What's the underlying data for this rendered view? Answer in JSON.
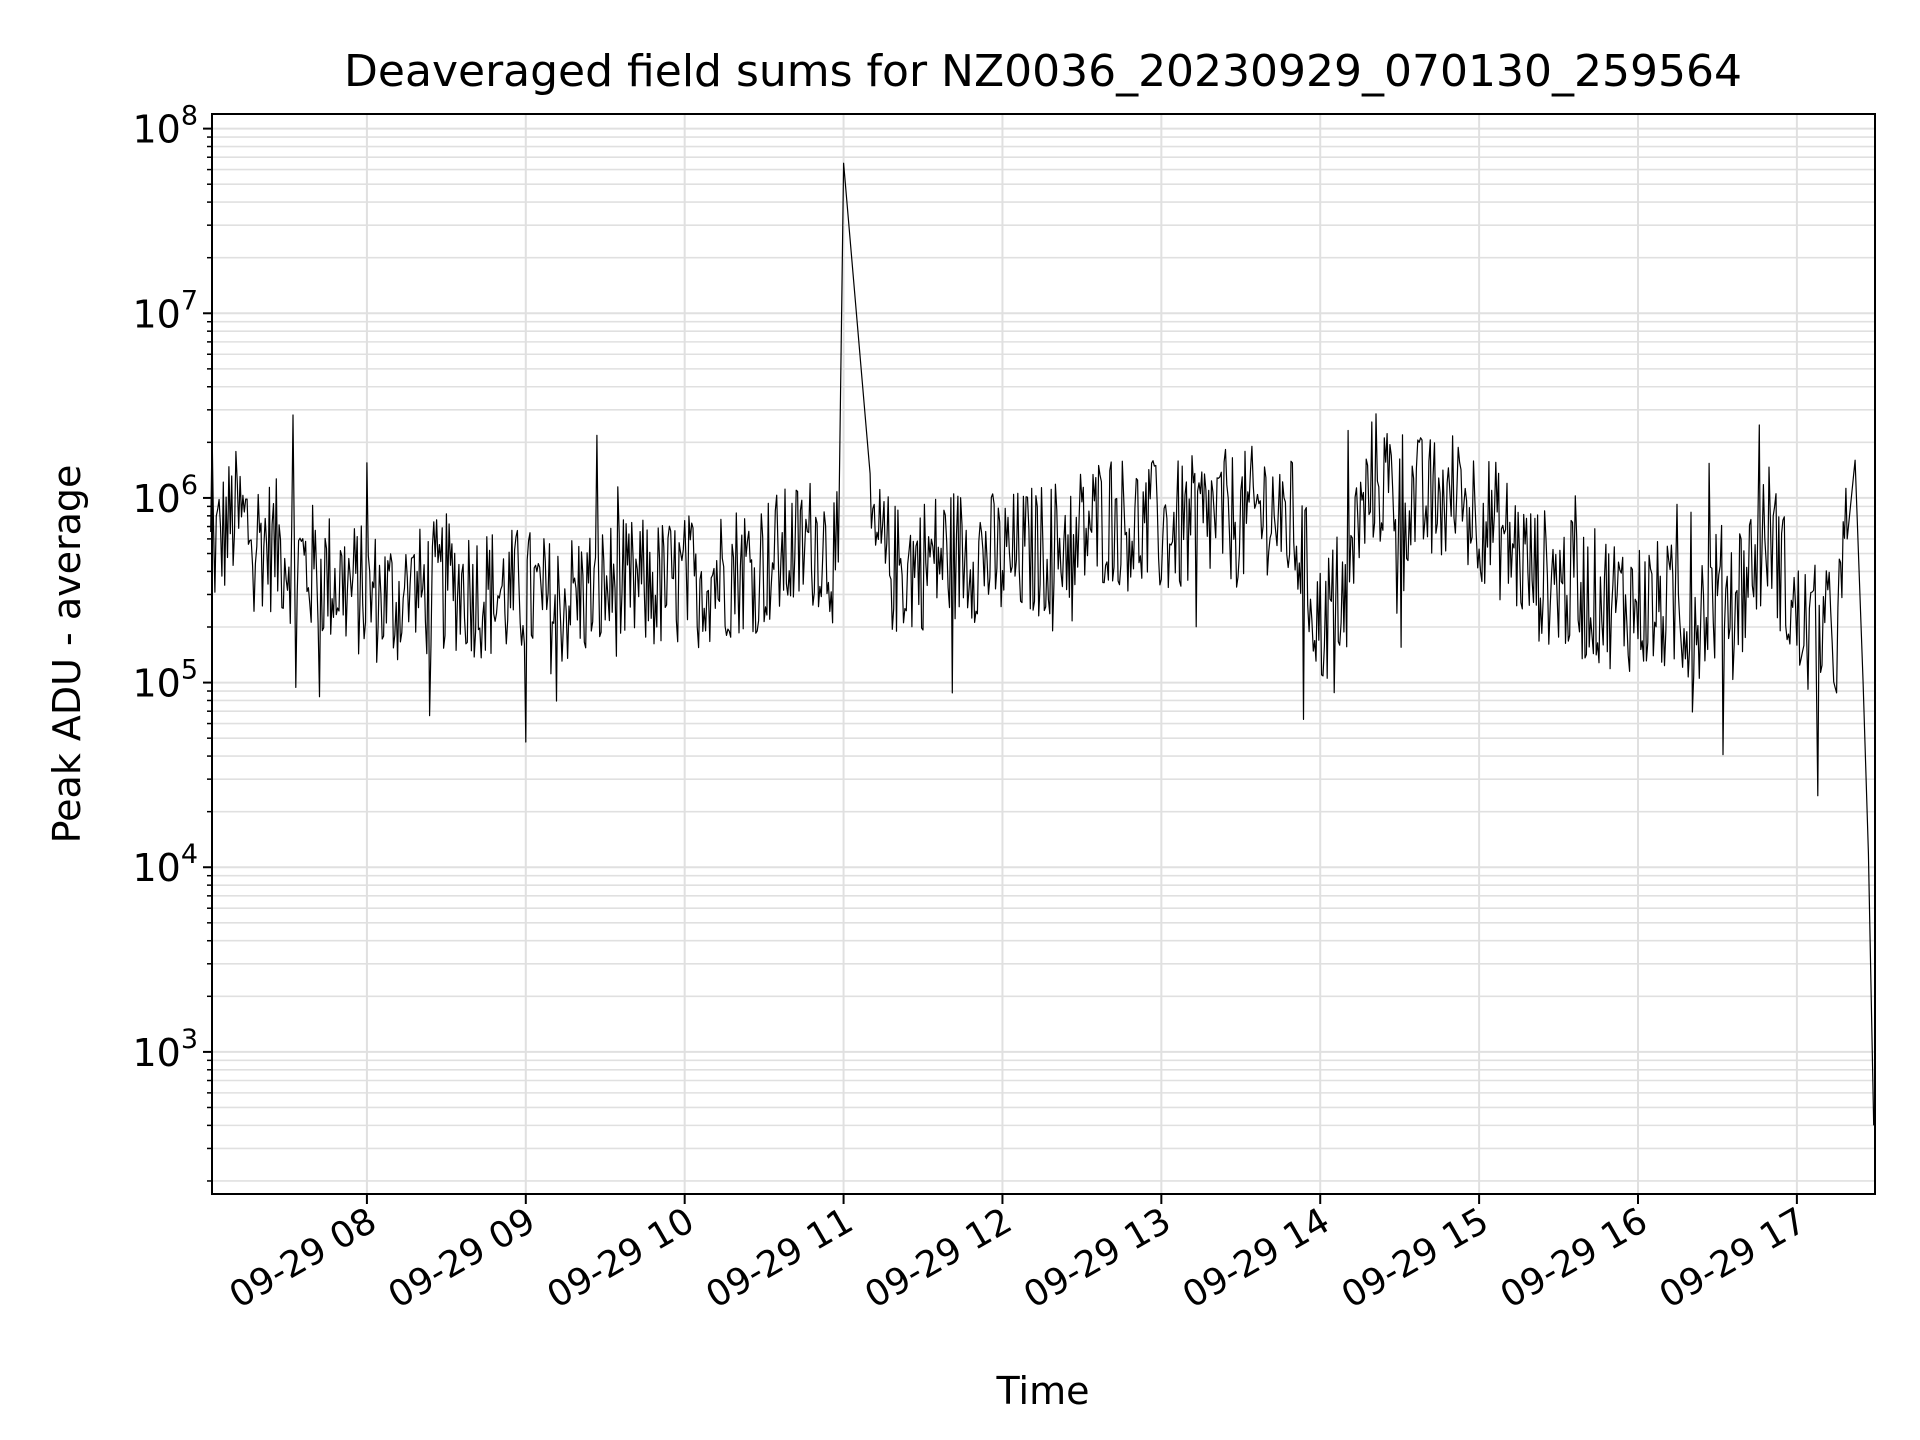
{
  "chart_data": {
    "type": "line",
    "title": "Deaveraged field sums for NZ0036_20230929_070130_259564",
    "xlabel": "Time",
    "ylabel": "Peak ADU - average",
    "yscale": "log",
    "ylim": [
      170,
      120000000
    ],
    "xlim": [
      "2023-09-29 07:01:30",
      "2023-09-29 17:29:30"
    ],
    "grid": true,
    "grid_minor": true,
    "legend": "none",
    "line_color": "#000000",
    "grid_color": "#e0e0e0",
    "x_ticks": [
      {
        "time": "2023-09-29 08:00",
        "label": "09-29 08"
      },
      {
        "time": "2023-09-29 09:00",
        "label": "09-29 09"
      },
      {
        "time": "2023-09-29 10:00",
        "label": "09-29 10"
      },
      {
        "time": "2023-09-29 11:00",
        "label": "09-29 11"
      },
      {
        "time": "2023-09-29 12:00",
        "label": "09-29 12"
      },
      {
        "time": "2023-09-29 13:00",
        "label": "09-29 13"
      },
      {
        "time": "2023-09-29 14:00",
        "label": "09-29 14"
      },
      {
        "time": "2023-09-29 15:00",
        "label": "09-29 15"
      },
      {
        "time": "2023-09-29 16:00",
        "label": "09-29 16"
      },
      {
        "time": "2023-09-29 17:00",
        "label": "09-29 17"
      }
    ],
    "y_ticks": [
      {
        "value": 1000,
        "base": "10",
        "exp": "3"
      },
      {
        "value": 10000,
        "base": "10",
        "exp": "4"
      },
      {
        "value": 100000,
        "base": "10",
        "exp": "5"
      },
      {
        "value": 1000000,
        "base": "10",
        "exp": "6"
      },
      {
        "value": 10000000,
        "base": "10",
        "exp": "7"
      },
      {
        "value": 100000000,
        "base": "10",
        "exp": "8"
      }
    ],
    "series": [
      {
        "color": "#000000",
        "x": [
          "2023-09-29 07:01",
          "2023-09-29 07:10",
          "2023-09-29 07:20",
          "2023-09-29 07:30",
          "2023-09-29 07:40",
          "2023-09-29 07:50",
          "2023-09-29 08:00",
          "2023-09-29 08:10",
          "2023-09-29 08:20",
          "2023-09-29 08:30",
          "2023-09-29 08:40",
          "2023-09-29 08:50",
          "2023-09-29 09:00",
          "2023-09-29 09:10",
          "2023-09-29 09:20",
          "2023-09-29 09:30",
          "2023-09-29 09:40",
          "2023-09-29 09:50",
          "2023-09-29 10:00",
          "2023-09-29 10:10",
          "2023-09-29 10:20",
          "2023-09-29 10:30",
          "2023-09-29 10:40",
          "2023-09-29 10:50",
          "2023-09-29 10:58",
          "2023-09-29 11:00",
          "2023-09-29 11:10",
          "2023-09-29 11:20",
          "2023-09-29 11:30",
          "2023-09-29 11:40",
          "2023-09-29 11:50",
          "2023-09-29 12:00",
          "2023-09-29 12:10",
          "2023-09-29 12:20",
          "2023-09-29 12:30",
          "2023-09-29 12:40",
          "2023-09-29 12:50",
          "2023-09-29 13:00",
          "2023-09-29 13:10",
          "2023-09-29 13:20",
          "2023-09-29 13:30",
          "2023-09-29 13:40",
          "2023-09-29 13:50",
          "2023-09-29 14:00",
          "2023-09-29 14:10",
          "2023-09-29 14:20",
          "2023-09-29 14:30",
          "2023-09-29 14:40",
          "2023-09-29 14:50",
          "2023-09-29 15:00",
          "2023-09-29 15:10",
          "2023-09-29 15:20",
          "2023-09-29 15:30",
          "2023-09-29 15:40",
          "2023-09-29 15:50",
          "2023-09-29 16:00",
          "2023-09-29 16:10",
          "2023-09-29 16:20",
          "2023-09-29 16:30",
          "2023-09-29 16:40",
          "2023-09-29 16:50",
          "2023-09-29 17:00",
          "2023-09-29 17:10",
          "2023-09-29 17:15",
          "2023-09-29 17:19",
          "2023-09-29 17:22",
          "2023-09-29 17:25",
          "2023-09-29 17:27",
          "2023-09-29 17:29"
        ],
        "values": [
          500000,
          800000,
          600000,
          500000,
          400000,
          350000,
          300000,
          280000,
          300000,
          350000,
          320000,
          300000,
          300000,
          260000,
          300000,
          320000,
          330000,
          330000,
          350000,
          380000,
          420000,
          450000,
          500000,
          600000,
          450000,
          65000000,
          600000,
          400000,
          450000,
          500000,
          500000,
          450000,
          500000,
          550000,
          650000,
          800000,
          700000,
          650000,
          700000,
          800000,
          750000,
          900000,
          700000,
          200000,
          350000,
          1300000,
          1100000,
          900000,
          1000000,
          850000,
          600000,
          400000,
          350000,
          300000,
          280000,
          260000,
          250000,
          230000,
          300000,
          350000,
          700000,
          200000,
          180000,
          180000,
          600000,
          1600000,
          100000,
          12000,
          400
        ]
      }
    ]
  }
}
